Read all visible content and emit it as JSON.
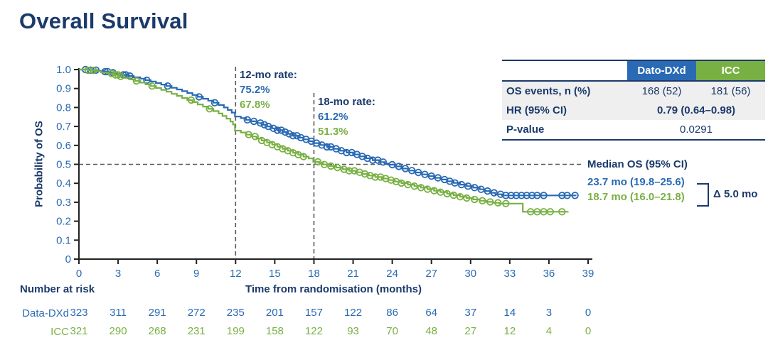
{
  "title": "Overall Survival",
  "colors": {
    "navy": "#1b3a6b",
    "blue": "#2a6ab4",
    "green": "#79b043",
    "axis": "#222222",
    "dash": "#595959",
    "row_gray": "#efefef"
  },
  "summary_table": {
    "columns": [
      "Dato-DXd",
      "ICC"
    ],
    "rows": [
      {
        "label": "OS events, n (%)",
        "dato": "168 (52)",
        "icc": "181 (56)"
      },
      {
        "label": "HR (95% CI)",
        "value": "0.79 (0.64–0.98)"
      },
      {
        "label": "P-value",
        "value": "0.0291"
      }
    ]
  },
  "annotations": {
    "rate12": {
      "label": "12-mo rate:",
      "dato": "75.2%",
      "icc": "67.8%",
      "month": 12
    },
    "rate18": {
      "label": "18-mo rate:",
      "dato": "61.2%",
      "icc": "51.3%",
      "month": 18
    },
    "median": {
      "header": "Median OS (95% CI)",
      "dato": "23.7 mo (19.8–25.6)",
      "icc": "18.7 mo (16.0–21.8)",
      "delta": "Δ 5.0 mo"
    }
  },
  "chart_data": {
    "type": "line",
    "subtype": "kaplan-meier-step",
    "title": "Overall Survival",
    "xlabel": "Time from randomisation (months)",
    "ylabel": "Probability of OS",
    "xlim": [
      0,
      39
    ],
    "ylim": [
      0,
      1
    ],
    "grid": false,
    "legend_position": "none",
    "x_ticks": [
      0,
      3,
      6,
      9,
      12,
      15,
      18,
      21,
      24,
      27,
      30,
      33,
      36,
      39
    ],
    "y_ticks": [
      {
        "v": 0,
        "label": "0"
      },
      {
        "v": 0.1,
        "label": "0.1"
      },
      {
        "v": 0.2,
        "label": "0.2"
      },
      {
        "v": 0.3,
        "label": "0.3"
      },
      {
        "v": 0.4,
        "label": "0.4"
      },
      {
        "v": 0.5,
        "label": "0.5"
      },
      {
        "v": 0.6,
        "label": "0.6"
      },
      {
        "v": 0.7,
        "label": "0.7"
      },
      {
        "v": 0.8,
        "label": "0.8"
      },
      {
        "v": 0.9,
        "label": "0.9"
      },
      {
        "v": 1,
        "label": "1.0"
      }
    ],
    "reference_lines": {
      "horizontal_at": 0.5,
      "vertical_at": [
        12,
        18
      ]
    },
    "series": [
      {
        "id": "dato-dxd",
        "name": "Dato-DXd",
        "color": "#2a6ab4",
        "median_months": 23.7,
        "rate_12mo": 0.752,
        "rate_18mo": 0.612,
        "end_month": 38.1,
        "steps": [
          [
            0,
            1
          ],
          [
            0.9,
            0.997
          ],
          [
            1.4,
            0.993
          ],
          [
            1.9,
            0.989
          ],
          [
            2.4,
            0.984
          ],
          [
            2.9,
            0.978
          ],
          [
            3.3,
            0.972
          ],
          [
            3.8,
            0.966
          ],
          [
            4.2,
            0.959
          ],
          [
            4.7,
            0.952
          ],
          [
            5.1,
            0.944
          ],
          [
            5.5,
            0.937
          ],
          [
            5.9,
            0.929
          ],
          [
            6.3,
            0.921
          ],
          [
            6.7,
            0.913
          ],
          [
            7.1,
            0.904
          ],
          [
            7.5,
            0.895
          ],
          [
            7.9,
            0.886
          ],
          [
            8.3,
            0.876
          ],
          [
            8.7,
            0.866
          ],
          [
            9.1,
            0.856
          ],
          [
            9.5,
            0.846
          ],
          [
            9.9,
            0.836
          ],
          [
            10.3,
            0.825
          ],
          [
            10.7,
            0.813
          ],
          [
            11.1,
            0.8
          ],
          [
            11.4,
            0.787
          ],
          [
            11.7,
            0.773
          ],
          [
            11.95,
            0.752
          ],
          [
            12.4,
            0.744
          ],
          [
            12.8,
            0.735
          ],
          [
            13.2,
            0.727
          ],
          [
            13.6,
            0.718
          ],
          [
            14,
            0.709
          ],
          [
            14.4,
            0.7
          ],
          [
            14.8,
            0.69
          ],
          [
            15.2,
            0.68
          ],
          [
            15.6,
            0.67
          ],
          [
            16,
            0.661
          ],
          [
            16.4,
            0.651
          ],
          [
            16.8,
            0.641
          ],
          [
            17.2,
            0.632
          ],
          [
            17.6,
            0.622
          ],
          [
            17.95,
            0.612
          ],
          [
            18.5,
            0.602
          ],
          [
            19,
            0.592
          ],
          [
            19.5,
            0.582
          ],
          [
            20,
            0.572
          ],
          [
            20.5,
            0.562
          ],
          [
            21,
            0.552
          ],
          [
            21.5,
            0.542
          ],
          [
            22,
            0.532
          ],
          [
            22.5,
            0.522
          ],
          [
            23,
            0.512
          ],
          [
            23.4,
            0.505
          ],
          [
            23.7,
            0.498
          ],
          [
            24.2,
            0.489
          ],
          [
            24.7,
            0.478
          ],
          [
            25.2,
            0.467
          ],
          [
            25.7,
            0.457
          ],
          [
            26.2,
            0.447
          ],
          [
            26.7,
            0.438
          ],
          [
            27.2,
            0.429
          ],
          [
            27.7,
            0.42
          ],
          [
            28.2,
            0.411
          ],
          [
            28.7,
            0.402
          ],
          [
            29.2,
            0.393
          ],
          [
            29.7,
            0.385
          ],
          [
            30.2,
            0.377
          ],
          [
            30.7,
            0.368
          ],
          [
            31.1,
            0.359
          ],
          [
            31.5,
            0.35
          ],
          [
            31.9,
            0.342
          ],
          [
            32.4,
            0.336
          ]
        ],
        "censor_months": [
          0.5,
          0.9,
          1.3,
          2,
          2.2,
          2.6,
          3.4,
          3.6,
          3.9,
          5.2,
          6.8,
          9.2,
          10.4,
          12.9,
          13.4,
          13.9,
          14.2,
          14.5,
          14.9,
          15.2,
          15.5,
          15.8,
          16.1,
          16.4,
          16.7,
          17,
          17.4,
          17.8,
          18.2,
          18.6,
          19,
          19.3,
          19.7,
          20.1,
          20.5,
          20.9,
          21.3,
          21.7,
          22.1,
          22.5,
          22.9,
          23.3,
          24,
          24.5,
          25,
          25.5,
          26,
          26.5,
          27,
          27.5,
          28,
          28.4,
          28.8,
          29.3,
          29.8,
          30.3,
          30.8,
          31.3,
          31.8,
          32.3,
          32.7,
          33.1,
          33.5,
          33.9,
          34.3,
          34.7,
          35.1,
          35.6,
          37,
          37.4,
          38
        ]
      },
      {
        "id": "icc",
        "name": "ICC",
        "color": "#79b043",
        "median_months": 18.7,
        "rate_12mo": 0.678,
        "rate_18mo": 0.513,
        "end_month": 37.5,
        "steps": [
          [
            0,
            1
          ],
          [
            0.7,
            0.996
          ],
          [
            1.2,
            0.991
          ],
          [
            1.7,
            0.985
          ],
          [
            2.2,
            0.979
          ],
          [
            2.7,
            0.972
          ],
          [
            3.1,
            0.964
          ],
          [
            3.5,
            0.956
          ],
          [
            3.9,
            0.948
          ],
          [
            4.3,
            0.94
          ],
          [
            4.7,
            0.931
          ],
          [
            5.1,
            0.922
          ],
          [
            5.5,
            0.913
          ],
          [
            5.9,
            0.903
          ],
          [
            6.3,
            0.893
          ],
          [
            6.7,
            0.883
          ],
          [
            7.1,
            0.872
          ],
          [
            7.5,
            0.861
          ],
          [
            7.9,
            0.85
          ],
          [
            8.3,
            0.839
          ],
          [
            8.7,
            0.828
          ],
          [
            9.1,
            0.816
          ],
          [
            9.5,
            0.805
          ],
          [
            9.9,
            0.793
          ],
          [
            10.3,
            0.781
          ],
          [
            10.7,
            0.768
          ],
          [
            11,
            0.755
          ],
          [
            11.3,
            0.741
          ],
          [
            11.6,
            0.726
          ],
          [
            11.8,
            0.71
          ],
          [
            11.95,
            0.678
          ],
          [
            12.4,
            0.668
          ],
          [
            12.8,
            0.657
          ],
          [
            13.2,
            0.647
          ],
          [
            13.6,
            0.636
          ],
          [
            14,
            0.626
          ],
          [
            14.4,
            0.615
          ],
          [
            14.8,
            0.604
          ],
          [
            15.2,
            0.593
          ],
          [
            15.6,
            0.582
          ],
          [
            16,
            0.572
          ],
          [
            16.4,
            0.561
          ],
          [
            16.8,
            0.551
          ],
          [
            17.2,
            0.541
          ],
          [
            17.6,
            0.531
          ],
          [
            17.95,
            0.513
          ],
          [
            18.4,
            0.506
          ],
          [
            18.7,
            0.499
          ],
          [
            19.2,
            0.491
          ],
          [
            19.7,
            0.483
          ],
          [
            20.2,
            0.474
          ],
          [
            20.7,
            0.466
          ],
          [
            21.2,
            0.458
          ],
          [
            21.7,
            0.449
          ],
          [
            22.2,
            0.441
          ],
          [
            22.7,
            0.433
          ],
          [
            23.2,
            0.425
          ],
          [
            23.7,
            0.417
          ],
          [
            24.2,
            0.409
          ],
          [
            24.7,
            0.401
          ],
          [
            25.2,
            0.393
          ],
          [
            25.7,
            0.385
          ],
          [
            26.2,
            0.377
          ],
          [
            26.7,
            0.369
          ],
          [
            27.2,
            0.361
          ],
          [
            27.7,
            0.353
          ],
          [
            28.2,
            0.345
          ],
          [
            28.7,
            0.337
          ],
          [
            29.2,
            0.329
          ],
          [
            29.7,
            0.322
          ],
          [
            30.2,
            0.315
          ],
          [
            30.7,
            0.308
          ],
          [
            31.2,
            0.302
          ],
          [
            31.7,
            0.297
          ],
          [
            32.2,
            0.293
          ],
          [
            34,
            0.25
          ]
        ],
        "censor_months": [
          0.7,
          1.1,
          2.5,
          2.8,
          3,
          3.2,
          4.4,
          5.6,
          8.6,
          10,
          13,
          13.5,
          14,
          14.4,
          14.8,
          15.2,
          15.6,
          16,
          16.4,
          16.8,
          17.2,
          18.3,
          18.8,
          19.3,
          19.8,
          20.3,
          20.7,
          21.1,
          21.5,
          21.9,
          22.3,
          22.7,
          23.1,
          23.5,
          23.9,
          24.3,
          24.7,
          25.2,
          25.7,
          26.2,
          26.7,
          27.2,
          27.7,
          28.2,
          28.7,
          29.2,
          29.7,
          30.3,
          30.9,
          31.5,
          32.1,
          32.7,
          34.6,
          35.1,
          35.6,
          36.1,
          37
        ]
      }
    ]
  },
  "risk_table": {
    "header": "Number at risk",
    "rows": [
      {
        "label": "Data-DXd",
        "color": "#2a6ab4",
        "values": [
          323,
          311,
          291,
          272,
          235,
          201,
          157,
          122,
          86,
          64,
          37,
          14,
          3,
          0
        ]
      },
      {
        "label": "ICC",
        "color": "#79b043",
        "values": [
          321,
          290,
          268,
          231,
          199,
          158,
          122,
          93,
          70,
          48,
          27,
          12,
          4,
          0
        ]
      }
    ]
  }
}
